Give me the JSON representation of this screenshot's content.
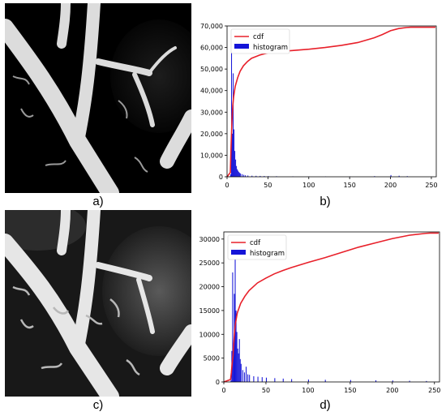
{
  "captions": {
    "a": "a)",
    "b": "b)",
    "c": "c)",
    "d": "d)"
  },
  "colors": {
    "cdf": "#e8202a",
    "histogram": "#1414d8",
    "vessel": "#e4e4e4",
    "background": "#000000"
  },
  "chart_data": [
    {
      "panel": "b",
      "type": "line",
      "legend": [
        "cdf",
        "histogram"
      ],
      "legend_position": "top-left",
      "xlim": [
        0,
        256
      ],
      "ylim": [
        0,
        70000
      ],
      "xticks": [
        "0",
        "50",
        "100",
        "150",
        "200",
        "250"
      ],
      "yticks": [
        "0",
        "10,000",
        "20,000",
        "30,000",
        "40,000",
        "50,000",
        "60,000",
        "70,000"
      ],
      "cdf": {
        "x": [
          0,
          4,
          5,
          6,
          7,
          8,
          10,
          13,
          16,
          20,
          25,
          30,
          40,
          50,
          60,
          80,
          100,
          120,
          140,
          160,
          180,
          190,
          200,
          210,
          220,
          225,
          230,
          255
        ],
        "y": [
          0,
          2000,
          15000,
          26000,
          33000,
          37000,
          42000,
          46000,
          49000,
          51500,
          53500,
          55000,
          56500,
          57500,
          58000,
          58600,
          59200,
          60000,
          61000,
          62300,
          64500,
          66000,
          67800,
          68800,
          69300,
          69400,
          69400,
          69400
        ]
      },
      "histogram": {
        "x": [
          3,
          4,
          5,
          6,
          7,
          8,
          9,
          10,
          11,
          12,
          13,
          14,
          15,
          16,
          18,
          20,
          22,
          25,
          30,
          35,
          40,
          45,
          50,
          60,
          80,
          100,
          120,
          150,
          180,
          200,
          210,
          220
        ],
        "y": [
          200,
          1200,
          60000,
          20000,
          48000,
          22000,
          12000,
          8000,
          5000,
          3500,
          2800,
          2200,
          1800,
          1500,
          1200,
          900,
          700,
          600,
          500,
          450,
          400,
          350,
          300,
          250,
          200,
          150,
          150,
          150,
          300,
          800,
          500,
          300
        ]
      }
    },
    {
      "panel": "d",
      "type": "line",
      "legend": [
        "cdf",
        "histogram"
      ],
      "legend_position": "top-left",
      "xlim": [
        0,
        256
      ],
      "ylim": [
        0,
        31500
      ],
      "xticks": [
        "0",
        "50",
        "100",
        "150",
        "200",
        "250"
      ],
      "yticks": [
        "0",
        "5000",
        "10000",
        "15000",
        "20000",
        "25000",
        "30000"
      ],
      "cdf": {
        "x": [
          0,
          8,
          9,
          10,
          11,
          12,
          13,
          14,
          16,
          18,
          20,
          25,
          30,
          40,
          50,
          60,
          70,
          80,
          100,
          120,
          140,
          160,
          180,
          200,
          220,
          240,
          245,
          255
        ],
        "y": [
          0,
          500,
          2000,
          4000,
          5500,
          8500,
          11000,
          12500,
          14500,
          15500,
          16500,
          18000,
          19200,
          20800,
          21800,
          22700,
          23400,
          24000,
          25100,
          26100,
          27200,
          28300,
          29200,
          30100,
          30800,
          31200,
          31250,
          31250
        ]
      },
      "histogram": {
        "x": [
          8,
          9,
          10,
          11,
          12,
          13,
          14,
          15,
          16,
          17,
          18,
          19,
          20,
          22,
          24,
          26,
          28,
          30,
          35,
          40,
          45,
          50,
          60,
          70,
          80,
          100,
          120,
          150,
          180,
          200,
          220,
          240
        ],
        "y": [
          300,
          6500,
          23000,
          8000,
          18500,
          28000,
          15000,
          10500,
          7000,
          6000,
          9000,
          4800,
          3800,
          2500,
          2000,
          3200,
          1600,
          1500,
          1200,
          1100,
          1000,
          900,
          800,
          700,
          600,
          500,
          450,
          400,
          350,
          300,
          250,
          200
        ]
      }
    }
  ]
}
